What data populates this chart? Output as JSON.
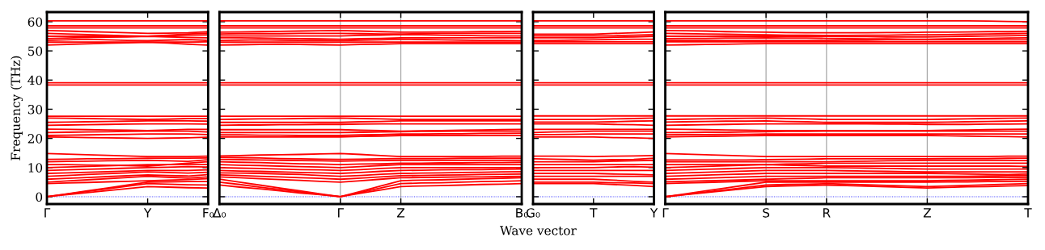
{
  "chart_data": [
    {
      "type": "line",
      "color": "#ff0000",
      "ylabel": "Frequency (THz)",
      "line_style": "solid",
      "categories": [
        "Γ",
        null,
        null,
        null,
        null,
        "Y",
        null,
        null,
        "F₀"
      ],
      "ylim": [
        -2.5,
        63.3
      ],
      "yticks": [
        0,
        10,
        20,
        30,
        40,
        50,
        60
      ],
      "ref_lines": [
        {
          "axis": "y",
          "value": 0,
          "color": "#0000ff",
          "line_style": "dotted"
        }
      ],
      "series": [
        {
          "values": [
            0,
            0.7,
            1.4,
            2.1,
            2.8,
            3.5,
            3.3,
            3.1,
            3.0
          ]
        },
        {
          "values": [
            0,
            0.9,
            1.8,
            2.7,
            3.6,
            4.5,
            4.3,
            4.1,
            4.0
          ]
        },
        {
          "values": [
            0,
            1,
            2,
            3,
            4,
            5,
            5.1,
            5.2,
            5.2
          ]
        },
        {
          "values": [
            4.5,
            4.7,
            4.9,
            5.1,
            5.3,
            5.5,
            5.7,
            5.9,
            6.2
          ]
        },
        {
          "values": [
            5,
            5.4,
            5.8,
            6.2,
            6.6,
            7,
            6.7,
            6.4,
            6.8
          ]
        },
        {
          "values": [
            6,
            6.3,
            6.6,
            6.9,
            7.2,
            7.5,
            7.3,
            7.1,
            7.6
          ]
        },
        {
          "values": [
            7,
            7.3,
            7.6,
            7.9,
            8.2,
            8.5,
            8.3,
            8.1,
            8.4
          ]
        },
        {
          "values": [
            8,
            8.2,
            8.4,
            8.6,
            8.8,
            9,
            9,
            9,
            9.2
          ]
        },
        {
          "values": [
            9,
            9.2,
            9.4,
            9.6,
            9.8,
            10,
            10.1,
            10.3,
            10.2
          ]
        },
        {
          "values": [
            10,
            10.2,
            10.4,
            10.6,
            10.8,
            11,
            11,
            11,
            11.1
          ]
        },
        {
          "values": [
            11,
            11,
            10.9,
            10.8,
            10.7,
            10.5,
            11,
            11.5,
            12
          ]
        },
        {
          "values": [
            12,
            12.1,
            12.2,
            12.3,
            12.4,
            12.5,
            12.3,
            12.1,
            12.7
          ]
        },
        {
          "values": [
            12.8,
            12.9,
            13,
            13,
            13.1,
            13.2,
            13.2,
            13.2,
            13.3
          ]
        },
        {
          "values": [
            14.8,
            14.6,
            14.4,
            14.2,
            14,
            13.8,
            13.8,
            13.8,
            13.9
          ]
        },
        {
          "values": [
            20.5,
            20.4,
            20.3,
            20.2,
            20.1,
            20,
            20.1,
            20.2,
            20.4
          ]
        },
        {
          "values": [
            21,
            21.1,
            21.2,
            21.3,
            21.4,
            21.5,
            21.5,
            21.5,
            21.3
          ]
        },
        {
          "values": [
            22,
            22.1,
            22.2,
            22.3,
            22.4,
            22.5,
            22.5,
            22.5,
            22.2
          ]
        },
        {
          "values": [
            23.2,
            23.1,
            23,
            22.9,
            22.8,
            22.7,
            22.9,
            23.1,
            23.1
          ]
        },
        {
          "values": [
            24.5,
            24.6,
            24.7,
            24.8,
            24.9,
            25,
            25,
            25,
            24.9
          ]
        },
        {
          "values": [
            25.5,
            25.6,
            25.7,
            25.8,
            25.9,
            26,
            26,
            26,
            25.9
          ]
        },
        {
          "values": [
            27,
            26.9,
            26.8,
            26.7,
            26.6,
            26.5,
            26.6,
            26.8,
            26.8
          ]
        },
        {
          "values": [
            27.6,
            27.6,
            27.6,
            27.6,
            27.6,
            27.6,
            27.6,
            27.6,
            27.6
          ]
        },
        {
          "values": [
            38.3,
            38.3,
            38.3,
            38.3,
            38.3,
            38.3,
            38.3,
            38.3,
            38.3
          ]
        },
        {
          "values": [
            39.1,
            39.1,
            39.1,
            39.1,
            39.1,
            39.1,
            39.1,
            39.1,
            39.1
          ]
        },
        {
          "values": [
            52,
            52.2,
            52.4,
            52.6,
            52.8,
            53,
            52.7,
            52.3,
            52
          ]
        },
        {
          "values": [
            53,
            53,
            53,
            53,
            53,
            53,
            53,
            53,
            53.1
          ]
        },
        {
          "values": [
            53.6,
            53.8,
            54,
            53.8,
            53.6,
            53.5,
            53.7,
            53.9,
            53.6
          ]
        },
        {
          "values": [
            54.2,
            54.4,
            54.6,
            54.7,
            54.8,
            55,
            54.8,
            54.6,
            54.5
          ]
        },
        {
          "values": [
            55,
            55,
            55,
            55,
            55,
            55,
            55.2,
            55.4,
            55.5
          ]
        },
        {
          "values": [
            56,
            55.8,
            55.6,
            55.4,
            55.2,
            55,
            55.4,
            55.8,
            56.1
          ]
        },
        {
          "values": [
            57,
            56.8,
            56.6,
            56.4,
            56.2,
            56,
            56.1,
            56.2,
            56.6
          ]
        },
        {
          "values": [
            57.9,
            57.9,
            57.9,
            57.9,
            57.9,
            57.9,
            57.9,
            57.9,
            57.9
          ]
        },
        {
          "values": [
            58.6,
            58.6,
            58.6,
            58.6,
            58.6,
            58.6,
            58.6,
            58.6,
            58.6
          ]
        },
        {
          "values": [
            60.3,
            60.3,
            60.3,
            60.3,
            60.3,
            60.3,
            60.3,
            60.3,
            60.3
          ]
        }
      ]
    },
    {
      "type": "line",
      "color": "#ff0000",
      "xlabel": "Wave vector",
      "grid": "x",
      "line_style": "solid",
      "tick_labels": "x",
      "categories": [
        "Δ₀",
        null,
        null,
        null,
        null,
        null,
        "Γ",
        null,
        null,
        "Z",
        null,
        null,
        null,
        null,
        null,
        "B₀"
      ],
      "ylim": [
        -2.5,
        63.3
      ],
      "ref_lines": [
        {
          "axis": "y",
          "value": 0,
          "color": "#0000ff",
          "line_style": "dotted"
        }
      ],
      "series": [
        {
          "values": [
            4,
            3.3,
            2.7,
            2,
            1.3,
            0.7,
            0,
            1.2,
            2.3,
            3.5,
            3.7,
            3.8,
            4,
            4.2,
            4.3,
            4.5
          ]
        },
        {
          "values": [
            5,
            4.2,
            3.3,
            2.5,
            1.7,
            0.8,
            0,
            1.5,
            3,
            4.5,
            4.7,
            4.8,
            5,
            5.2,
            5.3,
            5.5
          ]
        },
        {
          "values": [
            6,
            5,
            4,
            3,
            2,
            1,
            0,
            1.8,
            3.7,
            5.5,
            5.7,
            5.8,
            6,
            6.2,
            6.3,
            6.5
          ]
        },
        {
          "values": [
            6.8,
            6.5,
            6.2,
            5.9,
            5.6,
            5.3,
            5,
            5.5,
            6,
            6.5,
            6.6,
            6.7,
            6.8,
            6.8,
            6.9,
            7
          ]
        },
        {
          "values": [
            7.5,
            7.3,
            7,
            6.8,
            6.5,
            6.3,
            6,
            6.4,
            6.8,
            7.2,
            7.3,
            7.4,
            7.5,
            7.6,
            7.7,
            7.8
          ]
        },
        {
          "values": [
            8.2,
            8.1,
            8,
            7.8,
            7.6,
            7.3,
            7,
            7.3,
            7.7,
            8,
            8.1,
            8.2,
            8.3,
            8.4,
            8.5,
            8.6
          ]
        },
        {
          "values": [
            9,
            8.8,
            8.7,
            8.5,
            8.3,
            8.2,
            8,
            8.3,
            8.7,
            9,
            9.1,
            9.2,
            9.3,
            9.3,
            9.4,
            9.5
          ]
        },
        {
          "values": [
            10,
            9.8,
            9.7,
            9.5,
            9.3,
            9.2,
            9,
            9.3,
            9.7,
            10,
            10,
            10,
            10,
            10,
            10,
            10
          ]
        },
        {
          "values": [
            11,
            10.8,
            10.7,
            10.5,
            10.3,
            10.2,
            10,
            10.3,
            10.7,
            11,
            11,
            11,
            11,
            11,
            11,
            11
          ]
        },
        {
          "values": [
            12,
            11.8,
            11.7,
            11.5,
            11.3,
            11.2,
            11,
            11.2,
            11.3,
            11.5,
            11.5,
            11.6,
            11.6,
            11.7,
            11.7,
            11.8
          ]
        },
        {
          "values": [
            12.8,
            12.7,
            12.6,
            12.5,
            12.4,
            12.3,
            12.2,
            12.3,
            12.4,
            12.5,
            12.5,
            12.5,
            12.5,
            12.5,
            12.5,
            12.5
          ]
        },
        {
          "values": [
            13.5,
            13.4,
            13.3,
            13.1,
            13,
            12.9,
            12.8,
            12.9,
            13,
            13.1,
            13.1,
            13.1,
            13.2,
            13.2,
            13.2,
            13.2
          ]
        },
        {
          "values": [
            14,
            14.1,
            14.3,
            14.4,
            14.5,
            14.7,
            14.8,
            14.5,
            14.1,
            13.8,
            13.8,
            13.8,
            13.8,
            13.8,
            13.9,
            13.9
          ]
        },
        {
          "values": [
            20.5,
            20.5,
            20.5,
            20.5,
            20.5,
            20.5,
            20.5,
            20.7,
            20.8,
            21,
            21,
            21,
            21,
            21,
            21,
            21
          ]
        },
        {
          "values": [
            21.2,
            21.2,
            21.1,
            21.1,
            21,
            21,
            21,
            21.2,
            21.3,
            21.5,
            21.5,
            21.6,
            21.6,
            21.7,
            21.7,
            21.8
          ]
        },
        {
          "values": [
            22,
            22,
            22,
            22,
            22,
            22,
            22,
            22.1,
            22.2,
            22.3,
            22.4,
            22.4,
            22.5,
            22.5,
            22.5,
            22.5
          ]
        },
        {
          "values": [
            23,
            23,
            23,
            23,
            23,
            23,
            23,
            22.8,
            22.7,
            22.5,
            22.6,
            22.7,
            22.8,
            22.9,
            23,
            23.1
          ]
        },
        {
          "values": [
            24.5,
            24.6,
            24.6,
            24.7,
            24.7,
            24.8,
            24.8,
            24.9,
            25,
            25,
            25,
            25,
            25,
            25,
            25,
            25
          ]
        },
        {
          "values": [
            25.5,
            25.5,
            25.5,
            25.5,
            25.5,
            25.5,
            25.5,
            25.7,
            25.8,
            26,
            26,
            26,
            26,
            26,
            26,
            26
          ]
        },
        {
          "values": [
            26.5,
            26.6,
            26.7,
            26.7,
            26.8,
            26.9,
            27,
            26.8,
            26.7,
            26.5,
            26.5,
            26.5,
            26.5,
            26.5,
            26.5,
            26.5
          ]
        },
        {
          "values": [
            27.6,
            27.6,
            27.6,
            27.6,
            27.6,
            27.6,
            27.6,
            27.6,
            27.6,
            27.6,
            27.6,
            27.6,
            27.6,
            27.6,
            27.6,
            27.6
          ]
        },
        {
          "values": [
            38.3,
            38.3,
            38.3,
            38.3,
            38.3,
            38.3,
            38.3,
            38.3,
            38.3,
            38.3,
            38.3,
            38.3,
            38.3,
            38.3,
            38.3,
            38.3
          ]
        },
        {
          "values": [
            39.1,
            39.1,
            39.1,
            39.1,
            39.1,
            39.1,
            39.1,
            39.1,
            39.1,
            39.1,
            39.1,
            39.1,
            39.1,
            39.1,
            39.1,
            39.1
          ]
        },
        {
          "values": [
            52,
            52.1,
            52.2,
            52.3,
            52.2,
            52.1,
            52,
            52.2,
            52.3,
            52.5,
            52.5,
            52.5,
            52.5,
            52.5,
            52.5,
            52.5
          ]
        },
        {
          "values": [
            53,
            53,
            53,
            53,
            53,
            53,
            53,
            53,
            53,
            53,
            53,
            53,
            53,
            53,
            53,
            53
          ]
        },
        {
          "values": [
            53.6,
            53.7,
            53.8,
            53.7,
            53.6,
            53.6,
            53.5,
            53.7,
            53.8,
            54,
            53.9,
            53.8,
            53.7,
            53.6,
            53.6,
            53.5
          ]
        },
        {
          "values": [
            54.5,
            54.5,
            54.4,
            54.3,
            54.2,
            54.1,
            54,
            54.2,
            54.3,
            54.5,
            54.5,
            54.5,
            54.5,
            54.5,
            54.5,
            54.5
          ]
        },
        {
          "values": [
            55.1,
            55.1,
            55.1,
            55.1,
            55.1,
            55.1,
            55.1,
            55.3,
            55.4,
            55.6,
            55.5,
            55.4,
            55.3,
            55.2,
            55.1,
            55.1
          ]
        },
        {
          "values": [
            55.8,
            55.9,
            55.9,
            55.9,
            56,
            56,
            56,
            55.9,
            55.8,
            55.8,
            55.9,
            56,
            56,
            56,
            56,
            56
          ]
        },
        {
          "values": [
            56.4,
            56.5,
            56.6,
            56.7,
            56.8,
            56.9,
            57,
            56.8,
            56.6,
            56.4,
            56.4,
            56.5,
            56.5,
            56.6,
            56.6,
            56.7
          ]
        },
        {
          "values": [
            57.9,
            57.9,
            57.9,
            57.9,
            57.9,
            57.9,
            57.9,
            57.9,
            57.9,
            57.9,
            57.9,
            57.9,
            57.9,
            57.9,
            57.9,
            57.9
          ]
        },
        {
          "values": [
            58.6,
            58.6,
            58.6,
            58.6,
            58.6,
            58.6,
            58.6,
            58.6,
            58.6,
            58.6,
            58.6,
            58.6,
            58.6,
            58.6,
            58.6,
            58.6
          ]
        },
        {
          "values": [
            60.3,
            60.3,
            60.3,
            60.3,
            60.3,
            60.3,
            60.3,
            60.3,
            60.3,
            60.3,
            60.3,
            60.3,
            60.3,
            60.3,
            60.3,
            60.3
          ]
        }
      ]
    },
    {
      "type": "line",
      "color": "#ff0000",
      "line_style": "solid",
      "tick_labels": "x",
      "categories": [
        "G₀",
        null,
        null,
        "T",
        null,
        null,
        "Y"
      ],
      "ylim": [
        -2.5,
        63.3
      ],
      "ref_lines": [
        {
          "axis": "y",
          "value": 0,
          "color": "#0000ff",
          "line_style": "dotted"
        }
      ],
      "series": [
        {
          "values": [
            4.5,
            4.5,
            4.5,
            4.5,
            4.2,
            3.9,
            3.5
          ]
        },
        {
          "values": [
            5,
            5,
            5,
            5,
            4.8,
            4.7,
            4.5
          ]
        },
        {
          "values": [
            6,
            6,
            6,
            6,
            5.7,
            5.3,
            5
          ]
        },
        {
          "values": [
            7,
            7,
            7,
            7,
            7,
            7,
            7
          ]
        },
        {
          "values": [
            8,
            8,
            8,
            8,
            7.8,
            7.7,
            7.5
          ]
        },
        {
          "values": [
            9,
            9,
            9,
            9,
            9,
            9,
            9
          ]
        },
        {
          "values": [
            10,
            10,
            10,
            10,
            10.2,
            10.3,
            10.1
          ]
        },
        {
          "values": [
            11,
            11,
            11,
            11,
            11,
            11,
            11
          ]
        },
        {
          "values": [
            12,
            12,
            12,
            12,
            12.2,
            12.3,
            12.5
          ]
        },
        {
          "values": [
            13,
            12.9,
            12.7,
            12.5,
            12.7,
            12.8,
            13.2
          ]
        },
        {
          "values": [
            13.9,
            13.9,
            13.9,
            13.8,
            13.9,
            14,
            14.1
          ]
        },
        {
          "values": [
            20.5,
            20.5,
            20.5,
            20.5,
            20.3,
            20.2,
            20
          ]
        },
        {
          "values": [
            21.3,
            21.3,
            21.4,
            21.5,
            21.5,
            21.5,
            21.5
          ]
        },
        {
          "values": [
            22,
            22.2,
            22.3,
            22.5,
            22.5,
            22.5,
            22.5
          ]
        },
        {
          "values": [
            23.1,
            23.1,
            23.1,
            23.1,
            23.1,
            23.1,
            23.1
          ]
        },
        {
          "values": [
            25,
            25,
            25,
            25,
            24.8,
            24.7,
            24.5
          ]
        },
        {
          "values": [
            25.6,
            25.6,
            25.6,
            25.6,
            25.7,
            25.9,
            26
          ]
        },
        {
          "values": [
            26.5,
            26.5,
            26.5,
            26.5,
            26.7,
            26.8,
            27
          ]
        },
        {
          "values": [
            27.7,
            27.7,
            27.7,
            27.7,
            27.7,
            27.7,
            27.7
          ]
        },
        {
          "values": [
            38.3,
            38.3,
            38.3,
            38.3,
            38.3,
            38.3,
            38.3
          ]
        },
        {
          "values": [
            39.1,
            39.1,
            39.1,
            39.1,
            39.1,
            39.1,
            39.1
          ]
        },
        {
          "values": [
            52.5,
            52.5,
            52.5,
            52.5,
            52.5,
            52.5,
            52.5
          ]
        },
        {
          "values": [
            53.1,
            53.1,
            53.1,
            53.1,
            53.1,
            53.1,
            53.1
          ]
        },
        {
          "values": [
            53.6,
            53.6,
            53.7,
            53.8,
            53.9,
            54,
            54
          ]
        },
        {
          "values": [
            54.5,
            54.5,
            54.5,
            54.5,
            54.7,
            54.8,
            55
          ]
        },
        {
          "values": [
            55.1,
            55.1,
            55.1,
            55.1,
            55.2,
            55.4,
            55.6
          ]
        },
        {
          "values": [
            55.7,
            55.7,
            55.7,
            55.7,
            56,
            56.2,
            56.5
          ]
        },
        {
          "values": [
            57.9,
            57.9,
            57.9,
            57.9,
            57.9,
            57.9,
            57.9
          ]
        },
        {
          "values": [
            58.6,
            58.6,
            58.6,
            58.6,
            58.6,
            58.6,
            58.6
          ]
        },
        {
          "values": [
            60.3,
            60.3,
            60.3,
            60.3,
            60.3,
            60.3,
            60.3
          ]
        }
      ]
    },
    {
      "type": "line",
      "color": "#ff0000",
      "grid": "x",
      "line_style": "solid",
      "tick_labels": "x",
      "categories": [
        "Γ",
        null,
        null,
        null,
        null,
        "S",
        null,
        null,
        "R",
        null,
        null,
        null,
        null,
        "Z",
        null,
        null,
        null,
        null,
        "T"
      ],
      "ylim": [
        -2.5,
        63.3
      ],
      "ref_lines": [
        {
          "axis": "y",
          "value": 0,
          "color": "#0000ff",
          "line_style": "dotted"
        }
      ],
      "series": [
        {
          "values": [
            0,
            0.8,
            1.6,
            2.4,
            3.2,
            4,
            4.2,
            4.3,
            4.5,
            4.3,
            4.1,
            3.9,
            3.7,
            3.5,
            3.7,
            3.9,
            4.1,
            4.3,
            4.5
          ]
        },
        {
          "values": [
            0,
            0.7,
            1.4,
            2.1,
            2.8,
            3.5,
            3.7,
            3.8,
            4,
            3.8,
            3.6,
            3.4,
            3.2,
            3,
            3.2,
            3.4,
            3.5,
            3.7,
            3.8
          ]
        },
        {
          "values": [
            0,
            1,
            2,
            3,
            4,
            5,
            5,
            5,
            5,
            5,
            5,
            5,
            5,
            5,
            5.1,
            5.1,
            5.2,
            5.2,
            5.3
          ]
        },
        {
          "values": [
            4.5,
            4.7,
            4.9,
            5.1,
            5.3,
            5.5,
            5.5,
            5.5,
            5.5,
            5.5,
            5.5,
            5.5,
            5.5,
            5.5,
            5.6,
            5.7,
            5.8,
            5.9,
            6
          ]
        },
        {
          "values": [
            5.1,
            5.3,
            5.5,
            5.6,
            5.8,
            6,
            6.2,
            6.3,
            6.5,
            6.5,
            6.5,
            6.5,
            6.5,
            6.5,
            6.5,
            6.5,
            6.6,
            6.6,
            6.7
          ]
        },
        {
          "values": [
            6,
            6.2,
            6.4,
            6.6,
            6.8,
            7,
            7,
            7,
            7,
            7,
            7,
            7,
            7,
            7,
            7,
            7,
            7.1,
            7.2,
            7.3
          ]
        },
        {
          "values": [
            7,
            7.2,
            7.4,
            7.6,
            7.8,
            8,
            8,
            8,
            8,
            8,
            8,
            8,
            8,
            8,
            7.9,
            7.8,
            7.7,
            7.6,
            7.8
          ]
        },
        {
          "values": [
            8,
            8.2,
            8.4,
            8.6,
            8.8,
            9,
            9,
            9,
            9,
            8.9,
            8.8,
            8.7,
            8.6,
            8.5,
            8.5,
            8.5,
            8.5,
            8.5,
            8.5
          ]
        },
        {
          "values": [
            9,
            9.2,
            9.4,
            9.6,
            9.8,
            10,
            10,
            10,
            10,
            9.9,
            9.8,
            9.7,
            9.6,
            9.5,
            9.5,
            9.5,
            9.5,
            9.5,
            9.5
          ]
        },
        {
          "values": [
            10,
            10.2,
            10.4,
            10.6,
            10.8,
            11,
            10.8,
            10.7,
            10.5,
            10.5,
            10.5,
            10.5,
            10.5,
            10.5,
            10.5,
            10.5,
            10.5,
            10.5,
            10.4
          ]
        },
        {
          "values": [
            11,
            11,
            11,
            11,
            11,
            11,
            11.2,
            11.3,
            11.5,
            11.5,
            11.5,
            11.5,
            11.5,
            11.5,
            11.5,
            11.5,
            11.5,
            11.5,
            11.5
          ]
        },
        {
          "values": [
            12,
            12,
            12,
            12,
            12,
            12,
            12,
            12,
            12,
            12.1,
            12.2,
            12.3,
            12.4,
            12.5,
            12.5,
            12.5,
            12.5,
            12.5,
            12.4
          ]
        },
        {
          "values": [
            12.6,
            12.6,
            12.6,
            12.6,
            12.6,
            12.7,
            12.8,
            12.9,
            13,
            13,
            13,
            13,
            13,
            13,
            13.1,
            13.1,
            13.1,
            13.2,
            13.2
          ]
        },
        {
          "values": [
            14.8,
            14.6,
            14.4,
            14.2,
            14,
            13.8,
            13.8,
            13.8,
            13.8,
            13.8,
            13.8,
            13.8,
            13.8,
            13.8,
            13.8,
            13.8,
            13.8,
            13.9,
            13.9
          ]
        },
        {
          "values": [
            20.5,
            20.6,
            20.7,
            20.8,
            20.9,
            21,
            21,
            21,
            21,
            21,
            21,
            21,
            21,
            21,
            20.9,
            20.8,
            20.7,
            20.6,
            20.5
          ]
        },
        {
          "values": [
            21.2,
            21.3,
            21.3,
            21.4,
            21.4,
            21.5,
            21.5,
            21.5,
            21.5,
            21.5,
            21.5,
            21.5,
            21.5,
            21.5,
            21.5,
            21.5,
            21.5,
            21.5,
            21.5
          ]
        },
        {
          "values": [
            22,
            22,
            22.1,
            22.1,
            22.2,
            22.3,
            22.4,
            22.4,
            22.5,
            22.5,
            22.5,
            22.5,
            22.5,
            22.5,
            22.5,
            22.5,
            22.5,
            22.5,
            22.5
          ]
        },
        {
          "values": [
            23.2,
            23.1,
            23,
            22.9,
            22.8,
            22.7,
            22.7,
            22.7,
            22.7,
            22.7,
            22.7,
            22.7,
            22.7,
            22.7,
            22.8,
            22.9,
            23,
            23.1,
            23.2
          ]
        },
        {
          "values": [
            24.5,
            24.6,
            24.7,
            24.8,
            24.9,
            25,
            25,
            25,
            25,
            25,
            25,
            24.9,
            24.9,
            24.8,
            24.8,
            24.8,
            24.9,
            24.9,
            25
          ]
        },
        {
          "values": [
            25.6,
            25.7,
            25.8,
            25.9,
            25.9,
            26,
            25.8,
            25.7,
            25.5,
            25.5,
            25.5,
            25.5,
            25.5,
            25.5,
            25.6,
            25.7,
            25.8,
            25.9,
            26
          ]
        },
        {
          "values": [
            26.5,
            26.6,
            26.7,
            26.8,
            26.9,
            27,
            26.8,
            26.7,
            26.5,
            26.5,
            26.5,
            26.5,
            26.5,
            26.5,
            26.6,
            26.7,
            26.8,
            26.9,
            27
          ]
        },
        {
          "values": [
            27.7,
            27.7,
            27.7,
            27.7,
            27.7,
            27.7,
            27.7,
            27.7,
            27.7,
            27.7,
            27.7,
            27.7,
            27.7,
            27.7,
            27.7,
            27.7,
            27.7,
            27.7,
            27.7
          ]
        },
        {
          "values": [
            38.3,
            38.3,
            38.3,
            38.3,
            38.3,
            38.3,
            38.3,
            38.3,
            38.3,
            38.3,
            38.3,
            38.3,
            38.3,
            38.3,
            38.3,
            38.3,
            38.3,
            38.3,
            38.3
          ]
        },
        {
          "values": [
            39.1,
            39.1,
            39.1,
            39.1,
            39.1,
            39.1,
            39.1,
            39.1,
            39.1,
            39.1,
            39.1,
            39.1,
            39.1,
            39.1,
            39.1,
            39.1,
            39.1,
            39.1,
            39.1
          ]
        },
        {
          "values": [
            52,
            52.1,
            52.2,
            52.3,
            52.4,
            52.5,
            52.5,
            52.5,
            52.5,
            52.5,
            52.5,
            52.5,
            52.5,
            52.5,
            52.5,
            52.5,
            52.5,
            52.5,
            52.5
          ]
        },
        {
          "values": [
            53.1,
            53.1,
            53.1,
            53.1,
            53.1,
            53.1,
            53.1,
            53.1,
            53.1,
            53.1,
            53.1,
            53.1,
            53.1,
            53.1,
            53.1,
            53.1,
            53.1,
            53.1,
            53.1
          ]
        },
        {
          "values": [
            53.6,
            53.6,
            53.6,
            53.6,
            53.6,
            53.6,
            53.6,
            53.6,
            53.6,
            53.7,
            53.7,
            53.8,
            53.8,
            53.8,
            53.8,
            53.8,
            53.8,
            53.8,
            53.8
          ]
        },
        {
          "values": [
            54.2,
            54.3,
            54.3,
            54.4,
            54.4,
            54.5,
            54.4,
            54.4,
            54.3,
            54.2,
            54.1,
            54.1,
            54,
            54,
            54.1,
            54.2,
            54.3,
            54.4,
            54.5
          ]
        },
        {
          "values": [
            55,
            55,
            55,
            55,
            55,
            55,
            55,
            55,
            55,
            54.9,
            54.9,
            54.8,
            54.8,
            54.8,
            54.9,
            55,
            55.1,
            55.2,
            55.3
          ]
        },
        {
          "values": [
            56,
            55.9,
            55.8,
            55.7,
            55.6,
            55.5,
            55.4,
            55.4,
            55.3,
            55.3,
            55.4,
            55.4,
            55.5,
            55.5,
            55.6,
            55.7,
            55.8,
            55.9,
            56
          ]
        },
        {
          "values": [
            57,
            56.9,
            56.8,
            56.6,
            56.5,
            56.4,
            56.3,
            56.2,
            56.2,
            56.2,
            56.2,
            56.3,
            56.3,
            56.4,
            56.4,
            56.5,
            56.6,
            56.6,
            56.7
          ]
        },
        {
          "values": [
            57.9,
            57.9,
            57.9,
            57.9,
            57.9,
            57.9,
            57.9,
            57.9,
            57.9,
            57.9,
            57.9,
            57.9,
            57.9,
            57.9,
            57.9,
            57.9,
            57.9,
            57.9,
            57.9
          ]
        },
        {
          "values": [
            58.6,
            58.6,
            58.6,
            58.6,
            58.6,
            58.6,
            58.6,
            58.6,
            58.6,
            58.6,
            58.6,
            58.6,
            58.6,
            58.6,
            58.6,
            58.6,
            58.6,
            58.6,
            58.6
          ]
        },
        {
          "values": [
            60.3,
            60.3,
            60.3,
            60.3,
            60.3,
            60.3,
            60.3,
            60.3,
            60.3,
            60.3,
            60.3,
            60.3,
            60.3,
            60.3,
            60.3,
            60.3,
            60.2,
            60.1,
            60
          ]
        }
      ]
    }
  ]
}
